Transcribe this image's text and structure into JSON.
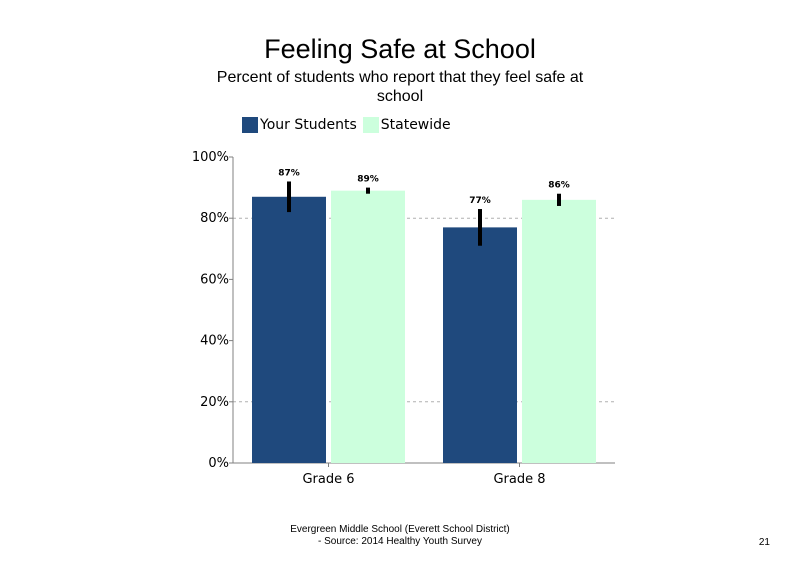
{
  "chart_data": {
    "type": "bar",
    "title": "Feeling Safe at School",
    "subtitle": "Percent of students who report that they feel safe at school",
    "categories": [
      "Grade 6",
      "Grade 8"
    ],
    "series": [
      {
        "name": "Your Students",
        "color": "#1f497d",
        "values": [
          87,
          77
        ],
        "labels": [
          "87%",
          "77%"
        ],
        "error_low": [
          82,
          71
        ],
        "error_high": [
          92,
          83
        ]
      },
      {
        "name": "Statewide",
        "color": "#ccffdd",
        "values": [
          89,
          86
        ],
        "labels": [
          "89%",
          "86%"
        ],
        "error_low": [
          88,
          84
        ],
        "error_high": [
          90,
          88
        ]
      }
    ],
    "yticks": [
      0,
      20,
      40,
      60,
      80,
      100
    ],
    "ytick_labels": [
      "0%",
      "20%",
      "40%",
      "60%",
      "80%",
      "100%"
    ],
    "ylim": [
      0,
      100
    ],
    "gridlines": [
      20,
      80
    ],
    "legend_position": "top"
  },
  "footer": {
    "line1": "Evergreen Middle School (Everett School District)",
    "line2": "- Source: 2014 Healthy  Youth Survey"
  },
  "page_number": "21"
}
